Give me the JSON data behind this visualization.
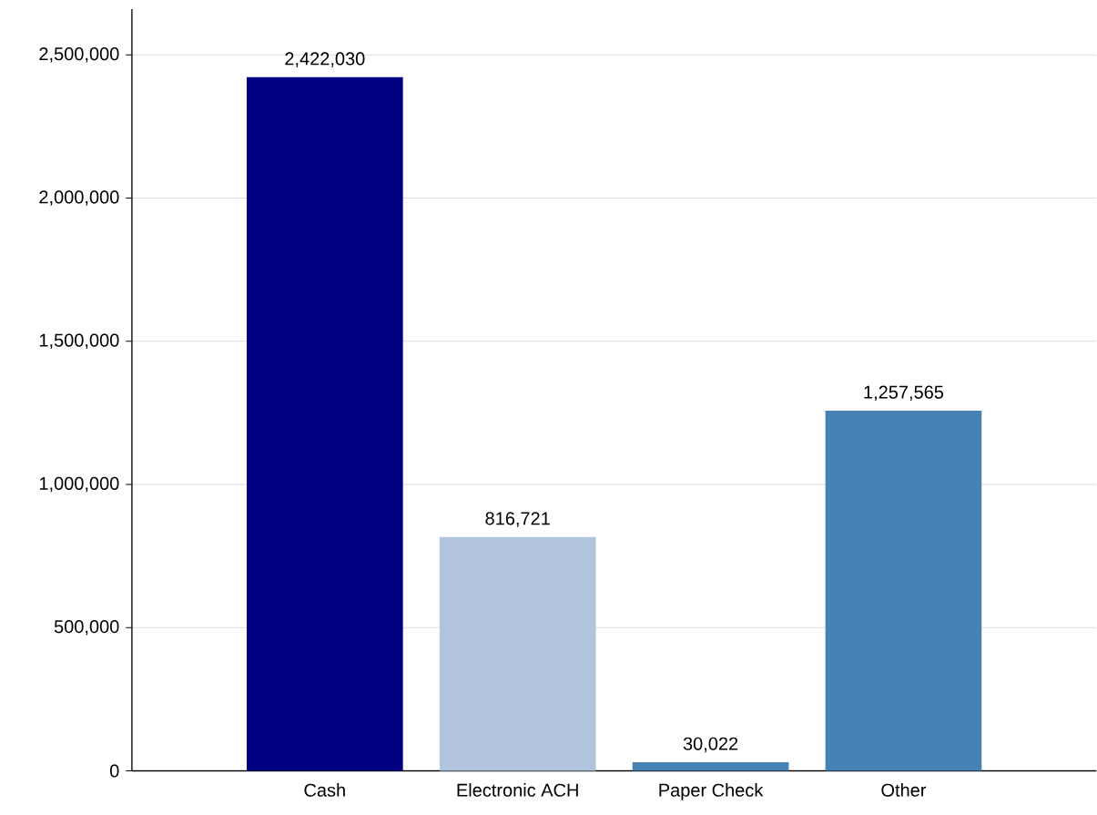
{
  "chart_data": {
    "type": "bar",
    "categories": [
      "Cash",
      "Electronic ACH",
      "Paper Check",
      "Other"
    ],
    "values": [
      2422030,
      816721,
      30022,
      1257565
    ],
    "colors": [
      "#000080",
      "#b0c4de",
      "#4682b4",
      "#4682b4"
    ],
    "value_labels": [
      "2,422,030",
      "816,721",
      "30,022",
      "1,257,565"
    ],
    "ylim": [
      0,
      2660000
    ],
    "yticks": [
      {
        "value": 0,
        "label": "0"
      },
      {
        "value": 500000,
        "label": "500,000"
      },
      {
        "value": 1000000,
        "label": "1,000,000"
      },
      {
        "value": 1500000,
        "label": "1,500,000"
      },
      {
        "value": 2000000,
        "label": "2,000,000"
      },
      {
        "value": 2500000,
        "label": "2,500,000"
      }
    ],
    "grid": "y"
  }
}
